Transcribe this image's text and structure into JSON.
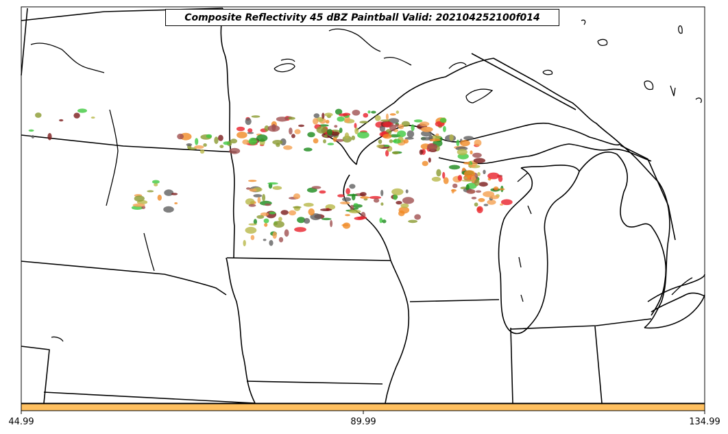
{
  "title": "Composite Reflectivity 45 dBZ Paintball Valid: 202104252100f014",
  "colorbar": {
    "color": "#ffc060",
    "ticks": [
      "44.99",
      "89.99",
      "134.99"
    ]
  },
  "paintball_colors": [
    "#e8202a",
    "#f08a24",
    "#3ec83e",
    "#1a8a1a",
    "#8a9a30",
    "#b8b848",
    "#a05050",
    "#606060",
    "#7a1a1a",
    "#f4a050"
  ]
}
